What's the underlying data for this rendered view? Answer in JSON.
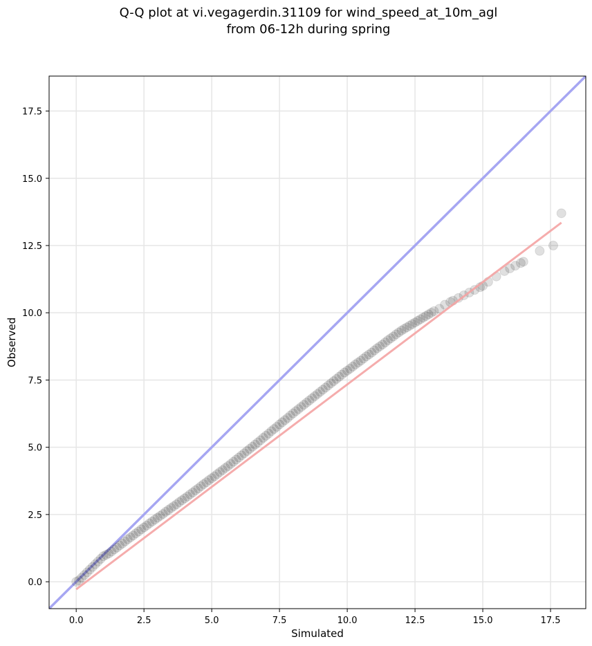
{
  "chart_data": {
    "type": "scatter",
    "title_lines": [
      "Q-Q plot at vi.vegagerdin.31109 for wind_speed_at_10m_agl",
      "from 06-12h during spring"
    ],
    "xlabel": "Simulated",
    "ylabel": "Observed",
    "xlim": [
      -1.0,
      18.8
    ],
    "ylim": [
      -1.0,
      18.8
    ],
    "xticks": [
      0.0,
      2.5,
      5.0,
      7.5,
      10.0,
      12.5,
      15.0,
      17.5
    ],
    "yticks": [
      0.0,
      2.5,
      5.0,
      7.5,
      10.0,
      12.5,
      15.0,
      17.5
    ],
    "xtick_labels": [
      "0.0",
      "2.5",
      "5.0",
      "7.5",
      "10.0",
      "12.5",
      "15.0",
      "17.5"
    ],
    "ytick_labels": [
      "0.0",
      "2.5",
      "5.0",
      "7.5",
      "10.0",
      "12.5",
      "15.0",
      "17.5"
    ],
    "grid": true,
    "colors": {
      "points": "#000000",
      "reference_line": "#a6a6f2",
      "fit_line": "#f4a3a3",
      "grid": "#e6e6e6"
    },
    "reference_line": {
      "x": [
        -1.0,
        18.8
      ],
      "y": [
        -1.0,
        18.8
      ]
    },
    "fit_line": {
      "x": [
        0.0,
        17.9
      ],
      "y": [
        -0.28,
        13.35
      ]
    },
    "series": [
      {
        "x": [
          0.0,
          0.1,
          0.2,
          0.3,
          0.4,
          0.5,
          0.6,
          0.7,
          0.8,
          0.9,
          1.0,
          1.1,
          1.2,
          1.3,
          1.4,
          1.5,
          1.6,
          1.7,
          1.8,
          1.9,
          2.0,
          2.1,
          2.2,
          2.3,
          2.4,
          2.5,
          2.6,
          2.7,
          2.8,
          2.9,
          3.0,
          3.1,
          3.2,
          3.3,
          3.4,
          3.5,
          3.6,
          3.7,
          3.8,
          3.9,
          4.0,
          4.1,
          4.2,
          4.3,
          4.4,
          4.5,
          4.6,
          4.7,
          4.8,
          4.9,
          5.0,
          5.1,
          5.2,
          5.3,
          5.4,
          5.5,
          5.6,
          5.7,
          5.8,
          5.9,
          6.0,
          6.1,
          6.2,
          6.3,
          6.4,
          6.5,
          6.6,
          6.7,
          6.8,
          6.9,
          7.0,
          7.1,
          7.2,
          7.3,
          7.4,
          7.5,
          7.6,
          7.7,
          7.8,
          7.9,
          8.0,
          8.1,
          8.2,
          8.3,
          8.4,
          8.5,
          8.6,
          8.7,
          8.8,
          8.9,
          9.0,
          9.1,
          9.2,
          9.3,
          9.4,
          9.5,
          9.6,
          9.7,
          9.8,
          9.9,
          10.0,
          10.1,
          10.2,
          10.3,
          10.4,
          10.5,
          10.6,
          10.7,
          10.8,
          10.9,
          11.0,
          11.1,
          11.2,
          11.3,
          11.4,
          11.5,
          11.6,
          11.7,
          11.8,
          11.9,
          12.0,
          12.1,
          12.2,
          12.3,
          12.4,
          12.5,
          12.6,
          12.7,
          12.8,
          12.9,
          13.0,
          13.1,
          13.2,
          13.4,
          13.6,
          13.8,
          13.9,
          14.1,
          14.3,
          14.5,
          14.7,
          14.9,
          15.0,
          15.2,
          15.5,
          15.8,
          16.0,
          16.2,
          16.4,
          16.5,
          17.1,
          17.6,
          17.9
        ],
        "y": [
          0.0,
          0.05,
          0.15,
          0.25,
          0.35,
          0.45,
          0.55,
          0.65,
          0.75,
          0.85,
          0.95,
          1.0,
          1.05,
          1.12,
          1.2,
          1.27,
          1.35,
          1.42,
          1.5,
          1.58,
          1.65,
          1.72,
          1.8,
          1.87,
          1.95,
          2.02,
          2.09,
          2.17,
          2.24,
          2.31,
          2.38,
          2.45,
          2.52,
          2.6,
          2.67,
          2.74,
          2.81,
          2.88,
          2.96,
          3.03,
          3.1,
          3.17,
          3.25,
          3.32,
          3.4,
          3.47,
          3.55,
          3.63,
          3.7,
          3.78,
          3.85,
          3.92,
          4.0,
          4.08,
          4.15,
          4.23,
          4.3,
          4.38,
          4.46,
          4.54,
          4.62,
          4.7,
          4.78,
          4.86,
          4.94,
          5.02,
          5.1,
          5.18,
          5.26,
          5.35,
          5.43,
          5.51,
          5.6,
          5.68,
          5.76,
          5.85,
          5.93,
          6.01,
          6.09,
          6.18,
          6.26,
          6.34,
          6.42,
          6.5,
          6.58,
          6.66,
          6.74,
          6.82,
          6.9,
          6.98,
          7.06,
          7.14,
          7.22,
          7.3,
          7.38,
          7.46,
          7.54,
          7.62,
          7.7,
          7.78,
          7.85,
          7.92,
          8.0,
          8.08,
          8.15,
          8.22,
          8.3,
          8.38,
          8.45,
          8.52,
          8.6,
          8.68,
          8.75,
          8.82,
          8.9,
          8.98,
          9.05,
          9.12,
          9.2,
          9.27,
          9.34,
          9.4,
          9.46,
          9.52,
          9.58,
          9.64,
          9.7,
          9.76,
          9.82,
          9.88,
          9.94,
          10.0,
          10.06,
          10.15,
          10.3,
          10.4,
          10.45,
          10.55,
          10.65,
          10.75,
          10.85,
          10.95,
          11.0,
          11.15,
          11.35,
          11.55,
          11.65,
          11.75,
          11.85,
          11.9,
          12.3,
          12.5,
          13.7
        ]
      }
    ]
  }
}
